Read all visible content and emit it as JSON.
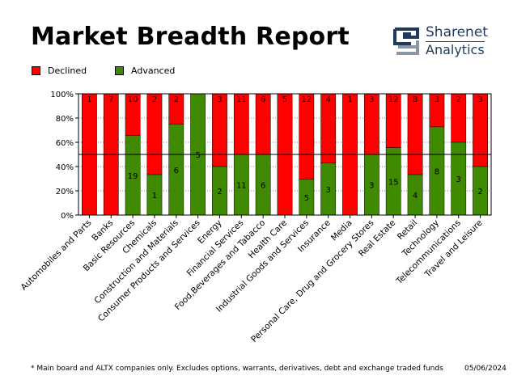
{
  "header": {
    "title": "Market Breadth Report",
    "logo_name": "Sharenet",
    "logo_sub": "Analytics"
  },
  "footer": {
    "note": "* Main board and ALTX companies only. Excludes options, warrants, derivatives, debt and exchange traded funds",
    "date": "05/06/2024"
  },
  "colors": {
    "declined": "#ff0000",
    "advanced": "#3f8a00",
    "logo_dark": "#1f3a5c",
    "logo_light": "#8a96a6"
  },
  "icons": {
    "logo": "sharenet-logo-icon"
  },
  "chart_data": {
    "type": "bar",
    "stacked": true,
    "percent": true,
    "categories": [
      "Automobiles and Parts",
      "Banks",
      "Basic Resources",
      "Chemicals",
      "Construction and Materials",
      "Consumer Products and Services",
      "Energy",
      "Financial Services",
      "Food,Beverages and Tabacco",
      "Health Care",
      "Industrial Goods and Services",
      "Insurance",
      "Media",
      "Personal Care, Drug and Grocery Stores",
      "Real Estate",
      "Retail",
      "Technology",
      "Telecommunications",
      "Travel and Leisure"
    ],
    "series": [
      {
        "name": "Declined",
        "values": [
          1,
          7,
          10,
          2,
          2,
          0,
          3,
          11,
          6,
          5,
          12,
          4,
          1,
          3,
          12,
          8,
          3,
          2,
          3
        ]
      },
      {
        "name": "Advanced",
        "values": [
          0,
          0,
          19,
          1,
          6,
          5,
          2,
          11,
          6,
          0,
          5,
          3,
          0,
          3,
          15,
          4,
          8,
          3,
          2
        ]
      }
    ],
    "ylim": [
      0,
      100
    ],
    "yticks": [
      "0%",
      "20%",
      "40%",
      "60%",
      "80%",
      "100%"
    ],
    "reference_line": 50,
    "legend": "top-left",
    "grid": true
  }
}
